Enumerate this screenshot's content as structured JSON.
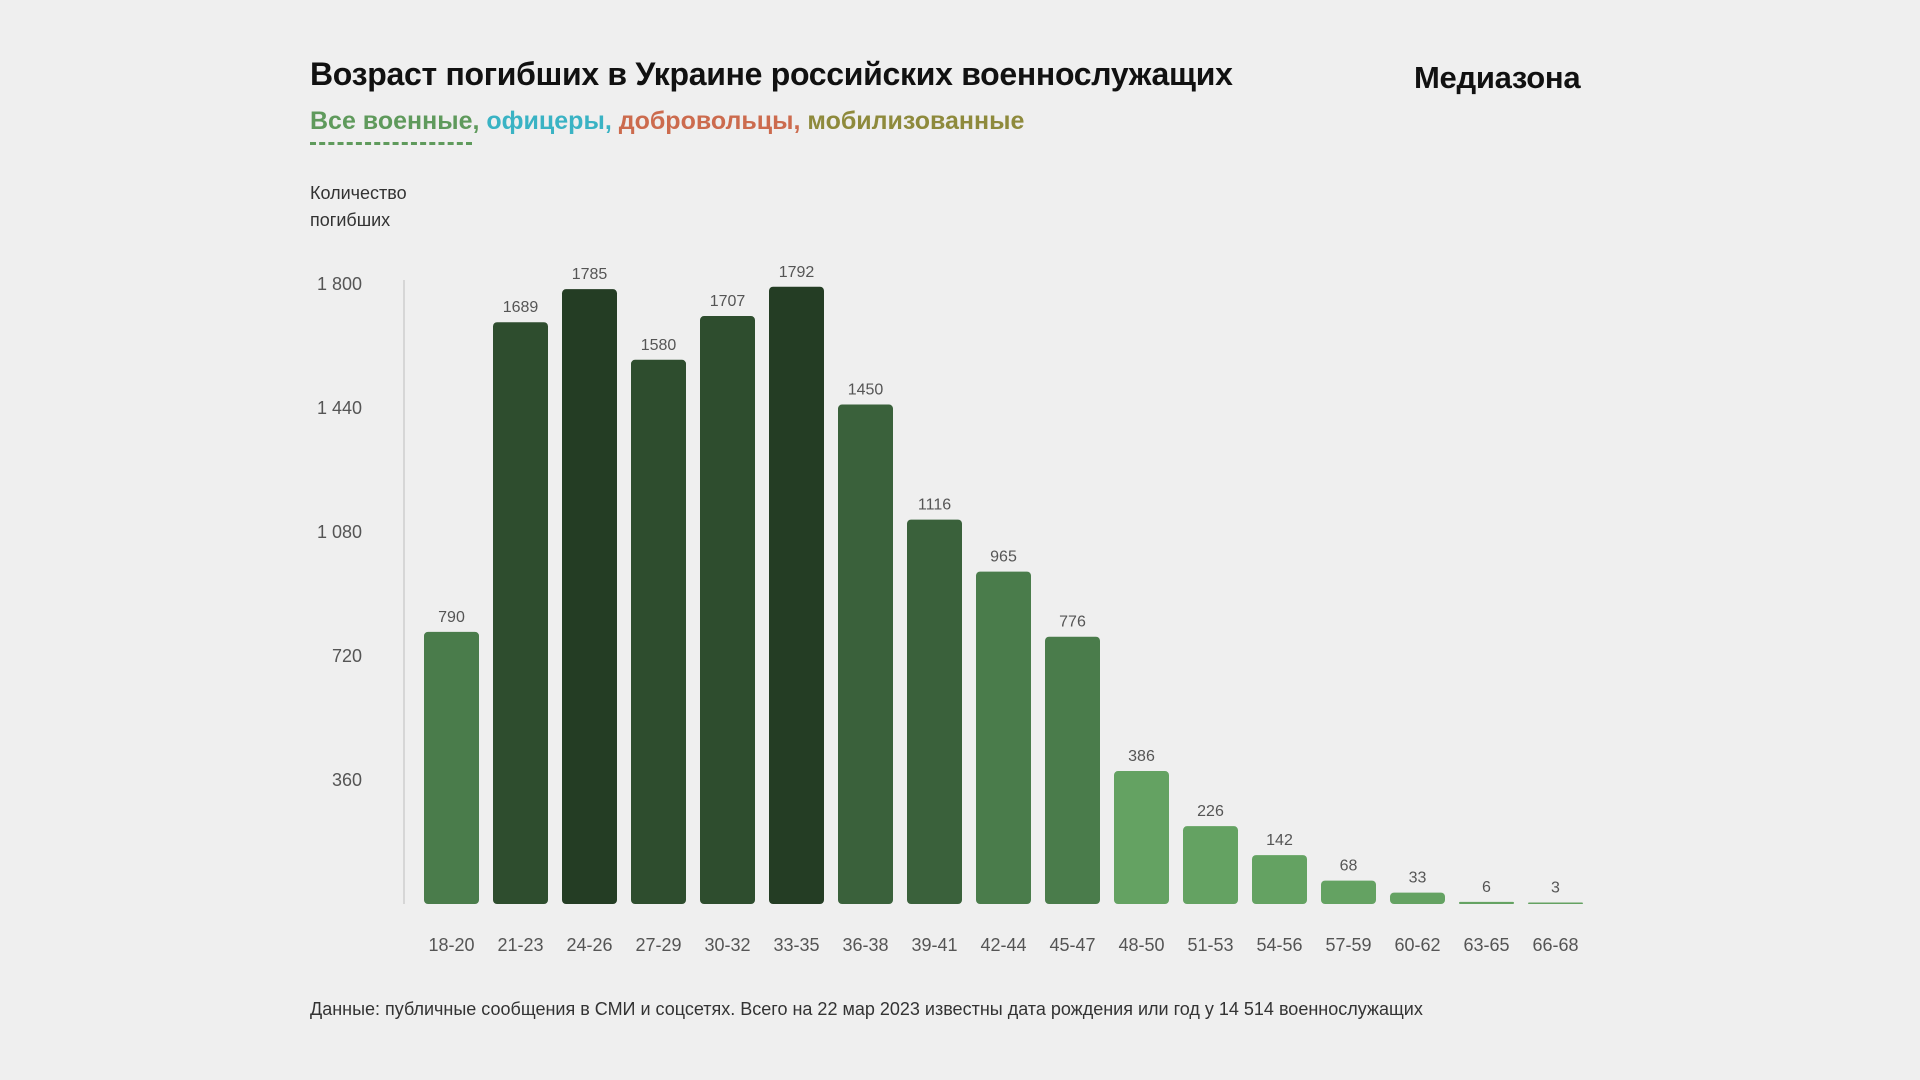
{
  "title": "Возраст погибших в Украине российских военнослужащих",
  "brand": "Медиазона",
  "filters": [
    {
      "label": "Все военные",
      "color": "#5f9a5c",
      "active": true
    },
    {
      "label": "офицеры",
      "color": "#3ab3c4",
      "active": false
    },
    {
      "label": "добровольцы",
      "color": "#cc6b4e",
      "active": false
    },
    {
      "label": "мобилизованные",
      "color": "#8e8a3c",
      "active": false
    }
  ],
  "filter_separator": ",",
  "footer": "Данные: публичные сообщения в СМИ и соцсетях. Всего на 22 мар 2023 известны дата рождения или год у 14 514 военнослужащих",
  "chart_data": {
    "type": "bar",
    "title": "Возраст погибших в Украине российских военнослужащих",
    "ylabel_lines": [
      "Количество",
      "погибших"
    ],
    "xlabel": "",
    "categories": [
      "18-20",
      "21-23",
      "24-26",
      "27-29",
      "30-32",
      "33-35",
      "36-38",
      "39-41",
      "42-44",
      "45-47",
      "48-50",
      "51-53",
      "54-56",
      "57-59",
      "60-62",
      "63-65",
      "66-68"
    ],
    "values": [
      790,
      1689,
      1785,
      1580,
      1707,
      1792,
      1450,
      1116,
      965,
      776,
      386,
      226,
      142,
      68,
      33,
      6,
      3
    ],
    "ylim": [
      0,
      1800
    ],
    "yticks": [
      360,
      720,
      1080,
      1440,
      1800
    ],
    "ytick_labels": [
      "360",
      "720",
      "1 080",
      "1 440",
      "1 800"
    ],
    "grid": false,
    "color_scale": [
      "#64a262",
      "#4a7c4b",
      "#3a613b",
      "#2e4d2e",
      "#243d24"
    ]
  }
}
